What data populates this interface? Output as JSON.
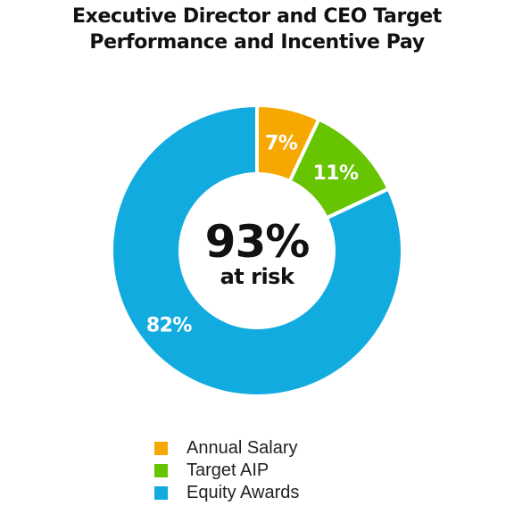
{
  "chart_data": {
    "type": "pie",
    "style": "donut",
    "title_lines": [
      "Executive Director and CEO Target",
      "Performance and Incentive Pay"
    ],
    "categories": [
      "Annual Salary",
      "Target AIP",
      "Equity Awards"
    ],
    "values": [
      7,
      11,
      82
    ],
    "value_labels": [
      "7%",
      "11%",
      "82%"
    ],
    "colors": [
      "#F7A800",
      "#66C400",
      "#11ABE0"
    ],
    "center_value": "93%",
    "center_caption": "at risk",
    "legend_position": "bottom"
  }
}
